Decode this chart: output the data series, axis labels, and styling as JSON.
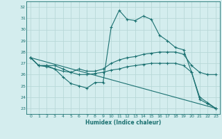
{
  "xlabel": "Humidex (Indice chaleur)",
  "bg_color": "#d4edee",
  "line_color": "#1a7070",
  "grid_color": "#b8d8d8",
  "ylim": [
    22.5,
    32.5
  ],
  "xlim": [
    -0.5,
    23.5
  ],
  "yticks": [
    23,
    24,
    25,
    26,
    27,
    28,
    29,
    30,
    31,
    32
  ],
  "xticks": [
    0,
    1,
    2,
    3,
    4,
    5,
    6,
    7,
    8,
    9,
    10,
    11,
    12,
    13,
    14,
    15,
    16,
    17,
    18,
    19,
    20,
    21,
    22,
    23
  ],
  "line1_x": [
    0,
    1,
    2,
    3,
    4,
    5,
    6,
    7,
    8,
    9,
    10,
    11,
    12,
    13,
    14,
    15,
    16,
    17,
    18,
    19,
    20,
    21,
    22,
    23
  ],
  "line1_y": [
    27.5,
    26.8,
    26.8,
    26.5,
    25.8,
    25.2,
    25.0,
    24.8,
    25.3,
    25.3,
    30.2,
    31.7,
    30.9,
    30.8,
    31.2,
    30.9,
    29.5,
    29.0,
    28.4,
    28.2,
    26.2,
    23.8,
    23.4,
    23.0
  ],
  "line2_x": [
    0,
    1,
    2,
    3,
    4,
    5,
    6,
    7,
    8,
    9,
    10,
    11,
    12,
    13,
    14,
    15,
    16,
    17,
    18,
    19,
    20,
    21,
    22,
    23
  ],
  "line2_y": [
    27.5,
    26.8,
    26.8,
    26.8,
    26.5,
    26.2,
    26.5,
    26.3,
    26.3,
    26.5,
    27.0,
    27.3,
    27.5,
    27.6,
    27.8,
    27.9,
    28.0,
    28.0,
    28.0,
    27.8,
    26.8,
    26.2,
    26.0,
    26.0
  ],
  "line3_x": [
    0,
    1,
    2,
    3,
    4,
    5,
    6,
    7,
    8,
    9,
    10,
    11,
    12,
    13,
    14,
    15,
    16,
    17,
    18,
    19,
    20,
    21,
    22,
    23
  ],
  "line3_y": [
    27.5,
    26.8,
    26.7,
    26.5,
    26.3,
    26.2,
    26.0,
    26.0,
    26.1,
    26.2,
    26.4,
    26.5,
    26.7,
    26.8,
    26.9,
    27.0,
    27.0,
    27.0,
    27.0,
    26.8,
    26.2,
    24.0,
    23.5,
    23.0
  ],
  "line4_x": [
    0,
    23
  ],
  "line4_y": [
    27.5,
    23.0
  ]
}
